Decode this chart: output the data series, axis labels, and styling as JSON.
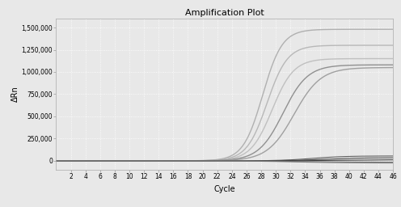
{
  "title": "Amplification Plot",
  "xlabel": "Cycle",
  "ylabel": "ΔRn",
  "xlim": [
    0,
    46
  ],
  "ylim": [
    -100000,
    1600000
  ],
  "xticks": [
    2,
    4,
    6,
    8,
    10,
    12,
    14,
    16,
    18,
    20,
    22,
    24,
    26,
    28,
    30,
    32,
    34,
    36,
    38,
    40,
    42,
    44,
    46
  ],
  "yticks": [
    0,
    250000,
    500000,
    750000,
    1000000,
    1250000,
    1500000
  ],
  "ytick_labels": [
    "0",
    "250,000",
    "500,000",
    "750,000",
    "1,000,000",
    "1,250,000",
    "1,500,000"
  ],
  "background_color": "#e8e8e8",
  "grid_color": "#ffffff",
  "curves": [
    {
      "plateau": 1480000,
      "midpoint": 28.2,
      "steepness": 0.75,
      "color": "#b0b0b0",
      "lw": 1.0
    },
    {
      "plateau": 1300000,
      "midpoint": 28.8,
      "steepness": 0.72,
      "color": "#b8b8b8",
      "lw": 1.0
    },
    {
      "plateau": 1150000,
      "midpoint": 29.5,
      "steepness": 0.68,
      "color": "#c0c0c0",
      "lw": 1.0
    },
    {
      "plateau": 1080000,
      "midpoint": 31.0,
      "steepness": 0.6,
      "color": "#909090",
      "lw": 1.0
    },
    {
      "plateau": 1050000,
      "midpoint": 32.5,
      "steepness": 0.55,
      "color": "#a0a0a0",
      "lw": 1.0
    },
    {
      "plateau": 55000,
      "midpoint": 35.0,
      "steepness": 0.45,
      "color": "#606060",
      "lw": 0.8
    },
    {
      "plateau": 35000,
      "midpoint": 36.5,
      "steepness": 0.4,
      "color": "#505050",
      "lw": 0.8
    },
    {
      "plateau": 12000,
      "midpoint": 38.0,
      "steepness": 0.35,
      "color": "#404040",
      "lw": 0.8
    },
    {
      "plateau": -25000,
      "midpoint": 33.0,
      "steepness": 0.3,
      "color": "#888888",
      "lw": 0.8
    },
    {
      "plateau": -15000,
      "midpoint": 34.0,
      "steepness": 0.28,
      "color": "#707070",
      "lw": 0.8
    }
  ],
  "title_fontsize": 8,
  "label_fontsize": 7,
  "tick_fontsize": 5.5
}
